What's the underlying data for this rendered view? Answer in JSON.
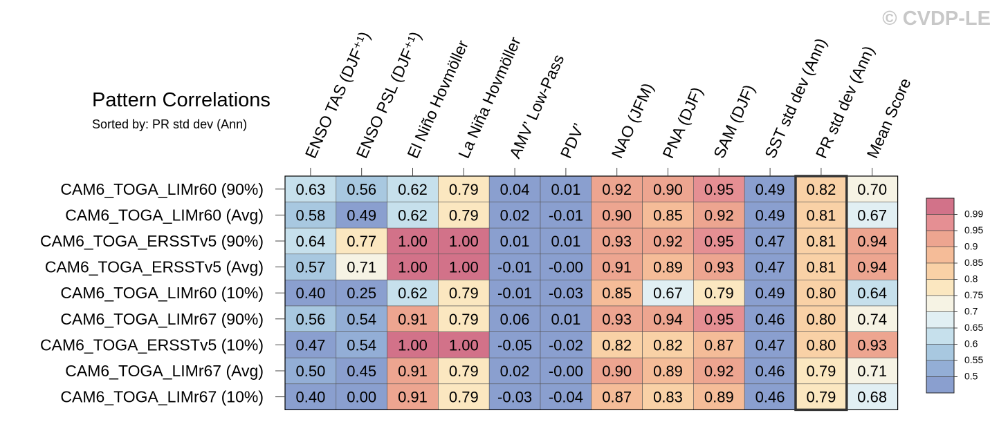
{
  "title": "Pattern Correlations",
  "subtitle": "Sorted by: PR std dev (Ann)",
  "watermark": "© CVDP-LE",
  "chart_data": {
    "type": "heatmap",
    "columns": [
      "ENSO TAS (DJF⁺¹)",
      "ENSO PSL (DJF⁺¹)",
      "El Niño Hovmöller",
      "La Niña Hovmöller",
      "AMV’ Low-Pass",
      "PDV’",
      "NAO (JFM)",
      "PNA (DJF)",
      "SAM (DJF)",
      "SST std dev (Ann)",
      "PR std dev (Ann)",
      "Mean Score"
    ],
    "rows": [
      "CAM6_TOGA_LIMr60 (90%)",
      "CAM6_TOGA_LIMr60 (Avg)",
      "CAM6_TOGA_ERSSTv5 (90%)",
      "CAM6_TOGA_ERSSTv5 (Avg)",
      "CAM6_TOGA_LIMr60 (10%)",
      "CAM6_TOGA_LIMr67 (90%)",
      "CAM6_TOGA_ERSSTv5 (10%)",
      "CAM6_TOGA_LIMr67 (Avg)",
      "CAM6_TOGA_LIMr67 (10%)"
    ],
    "values": [
      [
        "0.63",
        "0.56",
        "0.62",
        "0.79",
        "0.04",
        "0.01",
        "0.92",
        "0.90",
        "0.95",
        "0.49",
        "0.82",
        "0.70"
      ],
      [
        "0.58",
        "0.49",
        "0.62",
        "0.79",
        "0.02",
        "-0.01",
        "0.90",
        "0.85",
        "0.92",
        "0.49",
        "0.81",
        "0.67"
      ],
      [
        "0.64",
        "0.77",
        "1.00",
        "1.00",
        "0.01",
        "0.01",
        "0.93",
        "0.92",
        "0.95",
        "0.47",
        "0.81",
        "0.94"
      ],
      [
        "0.57",
        "0.71",
        "1.00",
        "1.00",
        "-0.01",
        "-0.00",
        "0.91",
        "0.89",
        "0.93",
        "0.47",
        "0.81",
        "0.94"
      ],
      [
        "0.40",
        "0.25",
        "0.62",
        "0.79",
        "-0.01",
        "-0.03",
        "0.85",
        "0.67",
        "0.79",
        "0.49",
        "0.80",
        "0.64"
      ],
      [
        "0.56",
        "0.54",
        "0.91",
        "0.79",
        "0.06",
        "0.01",
        "0.93",
        "0.94",
        "0.95",
        "0.46",
        "0.80",
        "0.74"
      ],
      [
        "0.47",
        "0.54",
        "1.00",
        "1.00",
        "-0.05",
        "-0.02",
        "0.82",
        "0.82",
        "0.87",
        "0.47",
        "0.80",
        "0.93"
      ],
      [
        "0.50",
        "0.45",
        "0.91",
        "0.79",
        "0.02",
        "-0.00",
        "0.90",
        "0.89",
        "0.92",
        "0.46",
        "0.79",
        "0.71"
      ],
      [
        "0.40",
        "0.00",
        "0.91",
        "0.79",
        "-0.03",
        "-0.04",
        "0.87",
        "0.83",
        "0.89",
        "0.46",
        "0.79",
        "0.68"
      ]
    ],
    "highlighted_column": "PR std dev (Ann)",
    "colorbar": {
      "labels": [
        "0.99",
        "0.95",
        "0.9",
        "0.85",
        "0.8",
        "0.75",
        "0.7",
        "0.65",
        "0.6",
        "0.55",
        "0.5"
      ],
      "colors": [
        "#d27289",
        "#e58f93",
        "#eda590",
        "#f5bc98",
        "#f9d1a6",
        "#fbe7c0",
        "#f6f3e4",
        "#e1eff3",
        "#c6e0ec",
        "#a8c8e0",
        "#93aed6",
        "#8a9fcf"
      ],
      "thresholds": [
        0.99,
        0.95,
        0.9,
        0.85,
        0.8,
        0.75,
        0.7,
        0.65,
        0.6,
        0.55,
        0.5
      ],
      "placement": "right"
    }
  }
}
